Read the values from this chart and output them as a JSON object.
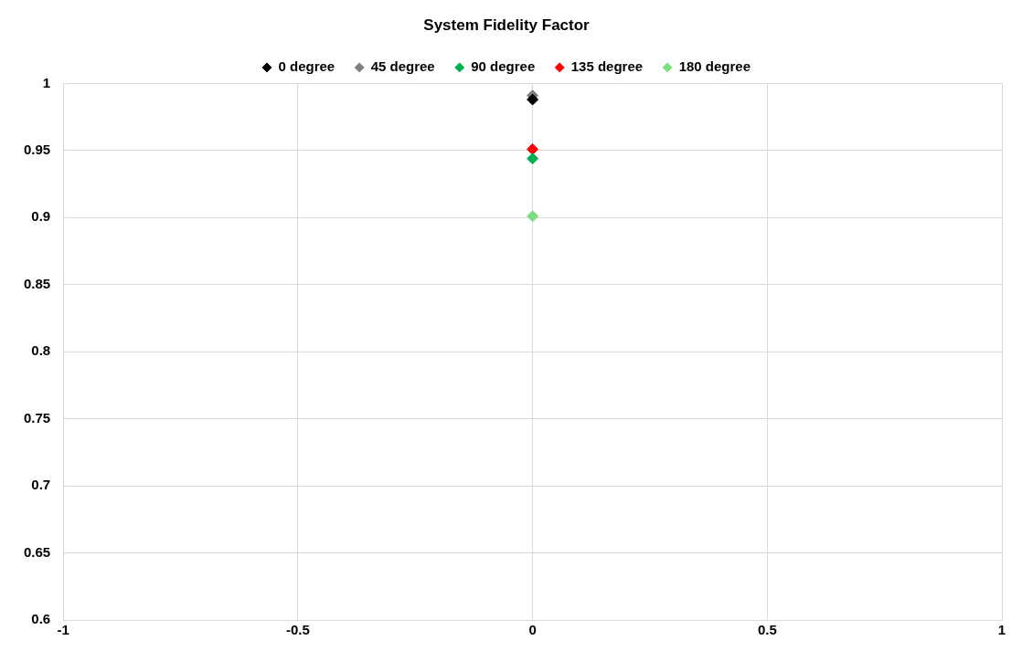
{
  "chart_data": {
    "type": "scatter",
    "title": "System Fidelity Factor",
    "legend": "top",
    "grid": true,
    "marker": "diamond",
    "xlim": [
      -1,
      1
    ],
    "xticks": [
      -1,
      -0.5,
      0,
      0.5,
      1
    ],
    "ylim": [
      0.6,
      1
    ],
    "yticks": [
      0.6,
      0.65,
      0.7,
      0.75,
      0.8,
      0.85,
      0.9,
      0.95,
      1
    ],
    "x": [
      0
    ],
    "series": [
      {
        "name": "0 degree",
        "color": "#000000",
        "values": [
          0.988
        ]
      },
      {
        "name": "45 degree",
        "color": "#808080",
        "values": [
          0.991
        ]
      },
      {
        "name": "90 degree",
        "color": "#00b050",
        "values": [
          0.944
        ]
      },
      {
        "name": "135 degree",
        "color": "#ff0000",
        "values": [
          0.951
        ]
      },
      {
        "name": "180 degree",
        "color": "#7be07b",
        "values": [
          0.901
        ]
      }
    ]
  }
}
